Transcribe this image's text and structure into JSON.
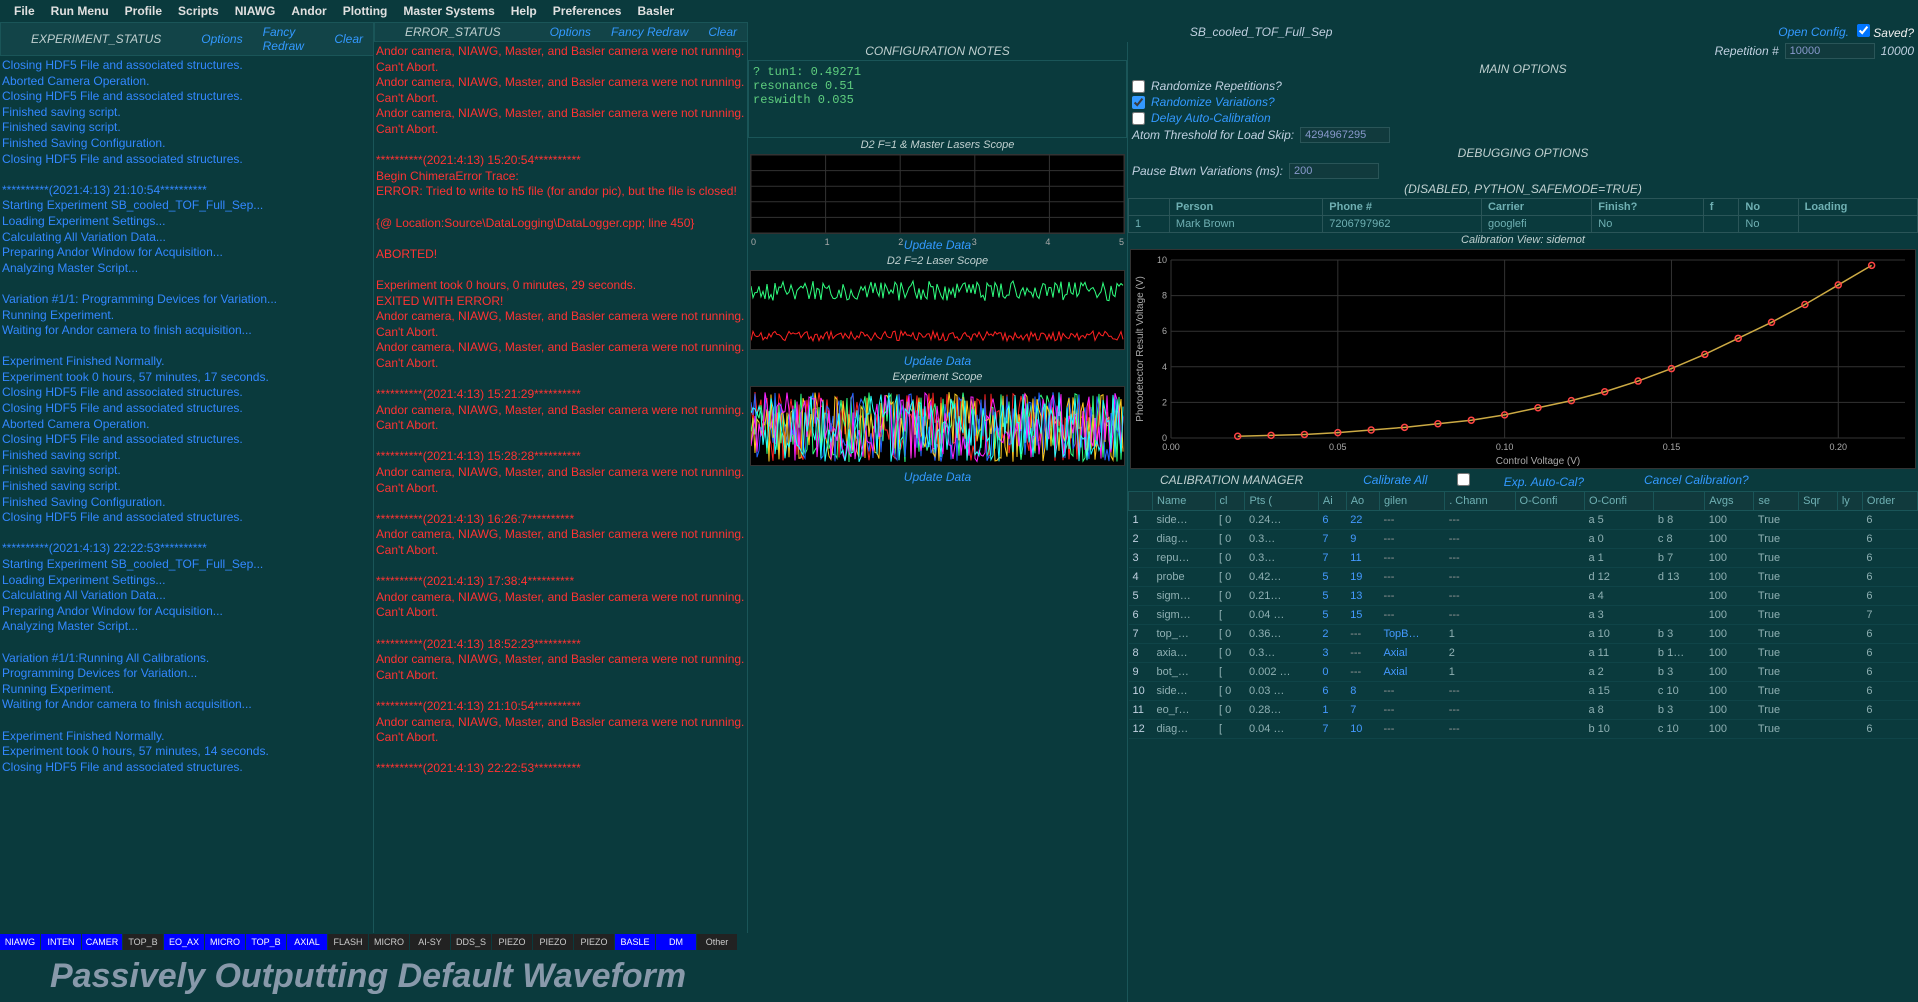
{
  "menubar": [
    "File",
    "Run Menu",
    "Profile",
    "Scripts",
    "NIAWG",
    "Andor",
    "Plotting",
    "Master Systems",
    "Help",
    "Preferences",
    "Basler"
  ],
  "statusPanes": {
    "exp": {
      "title": "EXPERIMENT_STATUS",
      "links": [
        "Options",
        "Fancy Redraw",
        "Clear"
      ]
    },
    "err": {
      "title": "ERROR_STATUS",
      "links": [
        "Options",
        "Fancy Redraw",
        "Clear"
      ]
    }
  },
  "expLog": [
    "Closing HDF5 File and associated structures.",
    "Aborted Camera Operation.",
    "Closing HDF5 File and associated structures.",
    "Finished saving script.",
    "Finished saving script.",
    "Finished Saving Configuration.",
    "Closing HDF5 File and associated structures.",
    "",
    "**********(2021:4:13) 21:10:54**********",
    "Starting Experiment SB_cooled_TOF_Full_Sep...",
    "Loading Experiment Settings...",
    "Calculating All Variation Data...",
    "Preparing Andor Window for Acquisition...",
    "Analyzing Master Script...",
    "",
    "Variation #1/1: Programming Devices for Variation...",
    "Running Experiment.",
    "Waiting for Andor camera to finish acquisition...",
    "",
    "Experiment Finished Normally.",
    "Experiment took 0 hours, 57 minutes, 17 seconds.",
    "Closing HDF5 File and associated structures.",
    "Closing HDF5 File and associated structures.",
    "Aborted Camera Operation.",
    "Closing HDF5 File and associated structures.",
    "Finished saving script.",
    "Finished saving script.",
    "Finished saving script.",
    "Finished Saving Configuration.",
    "Closing HDF5 File and associated structures.",
    "",
    "**********(2021:4:13) 22:22:53**********",
    "Starting Experiment SB_cooled_TOF_Full_Sep...",
    "Loading Experiment Settings...",
    "Calculating All Variation Data...",
    "Preparing Andor Window for Acquisition...",
    "Analyzing Master Script...",
    "",
    "Variation #1/1:Running All Calibrations.",
    "Programming Devices for Variation...",
    "Running Experiment.",
    "Waiting for Andor camera to finish acquisition...",
    "",
    "Experiment Finished Normally.",
    "Experiment took 0 hours, 57 minutes, 14 seconds.",
    "Closing HDF5 File and associated structures."
  ],
  "errLog": [
    "Andor camera, NIAWG, Master, and Basler camera were not running. Can't Abort.",
    "Andor camera, NIAWG, Master, and Basler camera were not running. Can't Abort.",
    "Andor camera, NIAWG, Master, and Basler camera were not running. Can't Abort.",
    "",
    "**********(2021:4:13) 15:20:54**********",
    "Begin ChimeraError Trace:",
    "ERROR: Tried to write to h5 file (for andor pic), but the file is closed!",
    "",
    "{@ Location:Source\\DataLogging\\DataLogger.cpp; line 450}",
    "",
    "ABORTED!",
    "",
    "Experiment took 0 hours, 0 minutes, 29 seconds.",
    "EXITED WITH ERROR!",
    "Andor camera, NIAWG, Master, and Basler camera were not running. Can't Abort.",
    "Andor camera, NIAWG, Master, and Basler camera were not running. Can't Abort.",
    "",
    "**********(2021:4:13) 15:21:29**********",
    "Andor camera, NIAWG, Master, and Basler camera were not running. Can't Abort.",
    "",
    "**********(2021:4:13) 15:28:28**********",
    "Andor camera, NIAWG, Master, and Basler camera were not running. Can't Abort.",
    "",
    "**********(2021:4:13) 16:26:7**********",
    "Andor camera, NIAWG, Master, and Basler camera were not running. Can't Abort.",
    "",
    "**********(2021:4:13) 17:38:4**********",
    "Andor camera, NIAWG, Master, and Basler camera were not running. Can't Abort.",
    "",
    "**********(2021:4:13) 18:52:23**********",
    "Andor camera, NIAWG, Master, and Basler camera were not running. Can't Abort.",
    "",
    "**********(2021:4:13) 21:10:54**********",
    "Andor camera, NIAWG, Master, and Basler camera were not running. Can't Abort.",
    "",
    "**********(2021:4:13) 22:22:53**********"
  ],
  "buttonRow": [
    {
      "t": "NIAWG",
      "c": "blue"
    },
    {
      "t": "INTEN",
      "c": "blue"
    },
    {
      "t": "CAMER",
      "c": "blue"
    },
    {
      "t": "TOP_B",
      "c": "dark"
    },
    {
      "t": "EO_AX",
      "c": "blue"
    },
    {
      "t": "MICRO",
      "c": "blue"
    },
    {
      "t": "TOP_B",
      "c": "blue"
    },
    {
      "t": "AXIAL",
      "c": "blue"
    },
    {
      "t": "FLASH",
      "c": "dark"
    },
    {
      "t": "MICRO",
      "c": "dark"
    },
    {
      "t": "AI-SY",
      "c": "dark"
    },
    {
      "t": "DDS_S",
      "c": "dark"
    },
    {
      "t": "PIEZO",
      "c": "dark"
    },
    {
      "t": "PIEZO",
      "c": "dark"
    },
    {
      "t": "PIEZO",
      "c": "dark"
    },
    {
      "t": "BASLE",
      "c": "blue"
    },
    {
      "t": "DM",
      "c": "blue"
    },
    {
      "t": "Other",
      "c": "dark"
    }
  ],
  "bigStatus": "Passively Outputting Default Waveform",
  "topRight": {
    "title": "SB_cooled_TOF_Full_Sep",
    "openConfig": "Open Config.",
    "saved": "Saved?"
  },
  "configNotes": {
    "title": "CONFIGURATION NOTES",
    "lines": [
      "? tun1: 0.49271",
      "resonance 0.51",
      "reswidth 0.035"
    ]
  },
  "scopes": {
    "s1": {
      "label": "D2 F=1 & Master Lasers Scope",
      "ylim": [
        0,
        5
      ],
      "xlim": [
        0,
        5
      ],
      "xticks": [
        0,
        1,
        2,
        3,
        4,
        5
      ],
      "yticks": [
        0,
        1,
        2,
        3,
        4,
        5
      ],
      "upd": "Update Data"
    },
    "s2": {
      "label": "D2 F=2 Laser Scope",
      "ylim": [
        -2,
        0.5
      ],
      "xlim": [
        0,
        2000
      ],
      "xticks": [
        0,
        500,
        1000,
        1500,
        2000
      ],
      "yticks": [
        -2,
        -1.5,
        -1,
        -0.5,
        0,
        0.5
      ],
      "upd": "Update Data",
      "traces": [
        {
          "color": "#2fff7f"
        },
        {
          "color": "#ff2222"
        }
      ]
    },
    "s3": {
      "label": "Experiment Scope",
      "ylim": [
        0,
        0.8
      ],
      "xlim": [
        0,
        400
      ],
      "xticks": [
        0,
        100,
        200,
        300,
        400
      ],
      "yticks": [
        0,
        0.2,
        0.4,
        0.6,
        0.8
      ],
      "upd": "Update Data",
      "colors": [
        "#ff2222",
        "#2fff7f",
        "#2266ff",
        "#ffcc22",
        "#ff22ff",
        "#22ffff"
      ]
    }
  },
  "rightOpts": {
    "rep": {
      "label": "Repetition #",
      "val": "10000",
      "disp": "10000"
    },
    "mainOpt": "MAIN OPTIONS",
    "randRep": "Randomize Repetitions?",
    "randVar": "Randomize Variations?",
    "delayAuto": "Delay Auto-Calibration",
    "atomThresh": {
      "label": "Atom Threshold for Load Skip:",
      "val": "4294967295"
    },
    "debugOpt": "DEBUGGING OPTIONS",
    "pauseVar": {
      "label": "Pause Btwn Variations (ms):",
      "val": "200"
    },
    "disabled": "(DISABLED, PYTHON_SAFEMODE=TRUE)"
  },
  "personTable": {
    "cols": [
      "",
      "Person",
      "Phone #",
      "Carrier",
      "Finish?",
      "f",
      "No",
      "Loading"
    ],
    "rows": [
      [
        "1",
        "Mark Brown",
        "7206797962",
        "googlefi",
        "No",
        "",
        "No",
        ""
      ]
    ]
  },
  "calChart": {
    "title": "Calibration View: sidemot",
    "xlabel": "Control Voltage (V)",
    "ylabel": "Photodetector Result Voltage (V)",
    "xlim": [
      0,
      0.22
    ],
    "ylim": [
      0,
      10
    ],
    "xticks": [
      0.0,
      0.05,
      0.1,
      0.15,
      0.2
    ],
    "yticks": [
      0,
      2,
      4,
      6,
      8,
      10
    ],
    "series_color": "#ff4444",
    "line_color": "#ccaa44",
    "marker": "circle",
    "points": [
      [
        0.02,
        0.1
      ],
      [
        0.03,
        0.15
      ],
      [
        0.04,
        0.2
      ],
      [
        0.05,
        0.3
      ],
      [
        0.06,
        0.45
      ],
      [
        0.07,
        0.6
      ],
      [
        0.08,
        0.8
      ],
      [
        0.09,
        1.0
      ],
      [
        0.1,
        1.3
      ],
      [
        0.11,
        1.7
      ],
      [
        0.12,
        2.1
      ],
      [
        0.13,
        2.6
      ],
      [
        0.14,
        3.2
      ],
      [
        0.15,
        3.9
      ],
      [
        0.16,
        4.7
      ],
      [
        0.17,
        5.6
      ],
      [
        0.18,
        6.5
      ],
      [
        0.19,
        7.5
      ],
      [
        0.2,
        8.6
      ],
      [
        0.21,
        9.7
      ]
    ]
  },
  "calMgr": {
    "title": "CALIBRATION MANAGER",
    "calAll": "Calibrate All",
    "expAuto": "Exp. Auto-Cal?",
    "cancel": "Cancel Calibration?",
    "cols": [
      "",
      "Name",
      "cl",
      "Pts (",
      "Ai",
      "Ao",
      "gilen",
      ". Chann",
      "O-Confi",
      "O-Confi",
      "",
      "Avgs",
      "se",
      "Sqr",
      "ly",
      "Order"
    ],
    "rows": [
      [
        "1",
        "side…",
        "[ 0",
        "0.24…",
        "6",
        "22",
        "---",
        "---",
        "",
        "a 5",
        "b 8",
        "100",
        "True",
        "",
        "",
        "6"
      ],
      [
        "2",
        "diag…",
        "[ 0",
        "0.3…",
        "7",
        "9",
        "---",
        "---",
        "",
        "a 0",
        "c 8",
        "100",
        "True",
        "",
        "",
        "6"
      ],
      [
        "3",
        "repu…",
        "[ 0",
        "0.3…",
        "7",
        "11",
        "---",
        "---",
        "",
        "a 1",
        "b 7",
        "100",
        "True",
        "",
        "",
        "6"
      ],
      [
        "4",
        "probe",
        "[ 0",
        "0.42…",
        "5",
        "19",
        "---",
        "---",
        "",
        "d 12",
        "d 13",
        "100",
        "True",
        "",
        "",
        "6"
      ],
      [
        "5",
        "sigm…",
        "[ 0",
        "0.21…",
        "5",
        "13",
        "---",
        "---",
        "",
        "a 4",
        "",
        "100",
        "True",
        "",
        "",
        "6"
      ],
      [
        "6",
        "sigm…",
        "[",
        "0.04 …",
        "5",
        "15",
        "---",
        "---",
        "",
        "a 3",
        "",
        "100",
        "True",
        "",
        "",
        "7"
      ],
      [
        "7",
        "top_…",
        "[ 0",
        "0.36…",
        "2",
        "---",
        "TopB…",
        "1",
        "",
        "a 10",
        "b 3",
        "100",
        "True",
        "",
        "",
        "6"
      ],
      [
        "8",
        "axia…",
        "[ 0",
        "0.3…",
        "3",
        "---",
        "Axial",
        "2",
        "",
        "a 11",
        "b 1…",
        "100",
        "True",
        "",
        "",
        "6"
      ],
      [
        "9",
        "bot_…",
        "[",
        "0.002 …",
        "0",
        "---",
        "Axial",
        "1",
        "",
        "a 2",
        "b 3",
        "100",
        "True",
        "",
        "",
        "6"
      ],
      [
        "10",
        "side…",
        "[ 0",
        "0.03 …",
        "6",
        "8",
        "---",
        "---",
        "",
        "a 15",
        "c 10",
        "100",
        "True",
        "",
        "",
        "6"
      ],
      [
        "11",
        "eo_r…",
        "[ 0",
        "0.28…",
        "1",
        "7",
        "---",
        "---",
        "",
        "a 8",
        "b 3",
        "100",
        "True",
        "",
        "",
        "6"
      ],
      [
        "12",
        "diag…",
        "[",
        "0.04 …",
        "7",
        "10",
        "---",
        "---",
        "",
        "b 10",
        "c 10",
        "100",
        "True",
        "",
        "",
        "6"
      ]
    ]
  }
}
